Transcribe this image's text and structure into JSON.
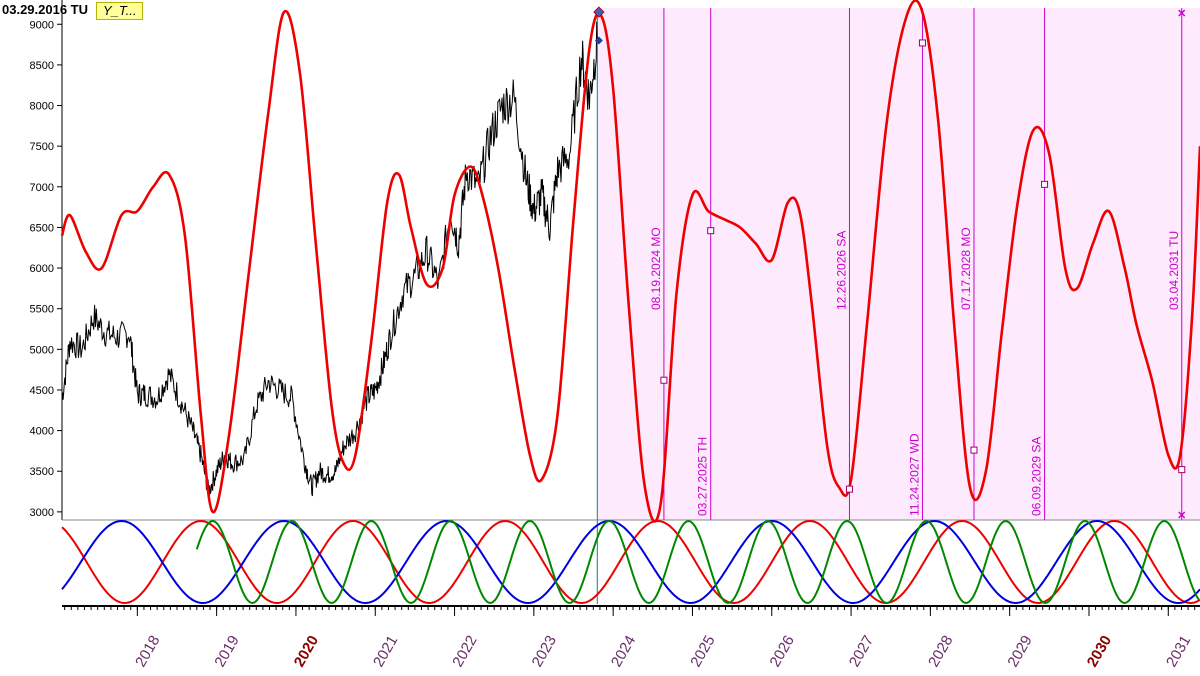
{
  "header": {
    "date_label": "03.29.2016 TU",
    "tag_label": "Y_T..."
  },
  "colors": {
    "price": "#000000",
    "forecast": "#ee0000",
    "cycle_red": "#ee0000",
    "cycle_blue": "#0000dd",
    "cycle_green": "#008800",
    "projection_band": "#fdeafd",
    "projection_line": "#cc00cc",
    "now_line": "#008b8b"
  },
  "chart_data": {
    "type": "line",
    "ylim": [
      2900,
      9200
    ],
    "y_ticks": [
      3000,
      3500,
      4000,
      4500,
      5000,
      5500,
      6000,
      6500,
      7000,
      7500,
      8000,
      8500,
      9000
    ],
    "x_ticks": [
      {
        "label": "2018",
        "x": 2018.0,
        "bold": false
      },
      {
        "label": "2019",
        "x": 2019.0,
        "bold": false
      },
      {
        "label": "2020",
        "x": 2020.0,
        "bold": true
      },
      {
        "label": "2021",
        "x": 2021.0,
        "bold": false
      },
      {
        "label": "2022",
        "x": 2022.0,
        "bold": false
      },
      {
        "label": "2023",
        "x": 2023.0,
        "bold": false
      },
      {
        "label": "2024",
        "x": 2024.0,
        "bold": false
      },
      {
        "label": "2025",
        "x": 2025.0,
        "bold": false
      },
      {
        "label": "2026",
        "x": 2026.0,
        "bold": false
      },
      {
        "label": "2027",
        "x": 2027.0,
        "bold": false
      },
      {
        "label": "2028",
        "x": 2028.0,
        "bold": false
      },
      {
        "label": "2029",
        "x": 2029.0,
        "bold": false
      },
      {
        "label": "2030",
        "x": 2030.0,
        "bold": true
      },
      {
        "label": "2031",
        "x": 2031.0,
        "bold": false
      }
    ],
    "xlim": [
      2017.05,
      2031.4
    ],
    "now_x": 2023.8,
    "series": [
      {
        "kind": "price",
        "x": [
          2017.05,
          2017.15,
          2017.3,
          2017.45,
          2017.6,
          2017.75,
          2017.9,
          2018.0,
          2018.1,
          2018.25,
          2018.4,
          2018.55,
          2018.7,
          2018.8,
          2018.9,
          2019.0,
          2019.1,
          2019.2,
          2019.35,
          2019.5,
          2019.65,
          2019.8,
          2019.95,
          2020.1,
          2020.2,
          2020.3,
          2020.4,
          2020.5,
          2020.6,
          2020.75,
          2020.9,
          2021.0,
          2021.1,
          2021.2,
          2021.35,
          2021.5,
          2021.65,
          2021.8,
          2021.95,
          2022.05,
          2022.15,
          2022.3,
          2022.45,
          2022.6,
          2022.75,
          2022.9,
          2023.0,
          2023.1,
          2023.2,
          2023.3,
          2023.45,
          2023.6,
          2023.7,
          2023.8
        ],
        "y": [
          4400,
          5100,
          5000,
          5400,
          5200,
          5150,
          5200,
          4450,
          4450,
          4400,
          4700,
          4350,
          4000,
          3700,
          3250,
          3500,
          3700,
          3600,
          3650,
          4300,
          4600,
          4500,
          4400,
          3650,
          3300,
          3500,
          3450,
          3500,
          3800,
          4000,
          4400,
          4500,
          4800,
          5200,
          5700,
          5900,
          6200,
          5800,
          6700,
          6300,
          7200,
          7000,
          7600,
          8000,
          8100,
          7100,
          6700,
          6900,
          6500,
          7200,
          7400,
          8600,
          8100,
          8800
        ]
      },
      {
        "kind": "forecast",
        "x": [
          2017.05,
          2017.15,
          2017.35,
          2017.55,
          2017.8,
          2018.0,
          2018.2,
          2018.4,
          2018.6,
          2018.8,
          2018.95,
          2019.15,
          2019.4,
          2019.65,
          2019.85,
          2020.05,
          2020.25,
          2020.45,
          2020.6,
          2020.75,
          2020.95,
          2021.15,
          2021.3,
          2021.45,
          2021.65,
          2021.85,
          2022.0,
          2022.2,
          2022.35,
          2022.55,
          2022.75,
          2022.95,
          2023.1,
          2023.3,
          2023.5,
          2023.7,
          2023.85,
          2024.0,
          2024.2,
          2024.4,
          2024.6,
          2024.8,
          2025.0,
          2025.2,
          2025.4,
          2025.6,
          2025.8,
          2026.0,
          2026.2,
          2026.35,
          2026.5,
          2026.7,
          2026.85,
          2027.0,
          2027.2,
          2027.45,
          2027.7,
          2027.9,
          2028.1,
          2028.3,
          2028.5,
          2028.7,
          2028.9,
          2029.1,
          2029.3,
          2029.5,
          2029.7,
          2029.85,
          2030.05,
          2030.25,
          2030.45,
          2030.6,
          2030.8,
          2031.0,
          2031.15,
          2031.3,
          2031.4
        ],
        "y": [
          6400,
          6650,
          6200,
          6000,
          6650,
          6700,
          7000,
          7150,
          6400,
          4200,
          3000,
          3900,
          5900,
          7900,
          9150,
          8400,
          6300,
          4300,
          3600,
          3700,
          5100,
          6800,
          7150,
          6500,
          5800,
          6000,
          6900,
          7250,
          6900,
          6000,
          4800,
          3700,
          3400,
          4200,
          6600,
          8700,
          9100,
          8200,
          5500,
          3300,
          3100,
          5700,
          6900,
          6700,
          6600,
          6500,
          6300,
          6100,
          6800,
          6700,
          5600,
          3800,
          3300,
          3400,
          5300,
          7800,
          9100,
          9150,
          7800,
          5300,
          3300,
          3500,
          5200,
          6800,
          7700,
          7400,
          6000,
          5750,
          6300,
          6700,
          6000,
          5300,
          4600,
          3700,
          3700,
          5400,
          7500
        ]
      }
    ],
    "markers": {
      "price_end": {
        "x": 2023.82,
        "y": 9150
      },
      "price_end2": {
        "x": 2023.82,
        "y": 8800
      },
      "forecast_points": [
        {
          "x": 2024.64,
          "y": 4620
        },
        {
          "x": 2025.23,
          "y": 6460
        },
        {
          "x": 2026.98,
          "y": 3280
        },
        {
          "x": 2027.9,
          "y": 8770
        },
        {
          "x": 2028.55,
          "y": 3760
        },
        {
          "x": 2029.44,
          "y": 7030
        },
        {
          "x": 2031.17,
          "y": 3520
        }
      ]
    },
    "projection_lines": [
      {
        "x": 2024.64,
        "label": "08.19.2024 MO",
        "label_pos": "top"
      },
      {
        "x": 2025.23,
        "label": "03.27.2025 TH",
        "label_pos": "bottom"
      },
      {
        "x": 2026.98,
        "label": "12.26.2026 SA",
        "label_pos": "top"
      },
      {
        "x": 2027.9,
        "label": "11.24.2027 WD",
        "label_pos": "bottom"
      },
      {
        "x": 2028.55,
        "label": "07.17.2028 MO",
        "label_pos": "top"
      },
      {
        "x": 2029.44,
        "label": "06.09.2029 SA",
        "label_pos": "bottom"
      },
      {
        "x": 2031.17,
        "label": "03.04.2031 TU",
        "label_pos": "top"
      }
    ],
    "cycles": [
      {
        "color_key": "cycle_red",
        "period_years": 1.92,
        "phase_peak_x": 2018.8
      },
      {
        "color_key": "cycle_blue",
        "period_years": 2.05,
        "phase_peak_x": 2017.8
      },
      {
        "color_key": "cycle_green",
        "period_years": 1.0,
        "phase_peak_x": 2018.95,
        "start_x": 2018.75
      }
    ]
  }
}
